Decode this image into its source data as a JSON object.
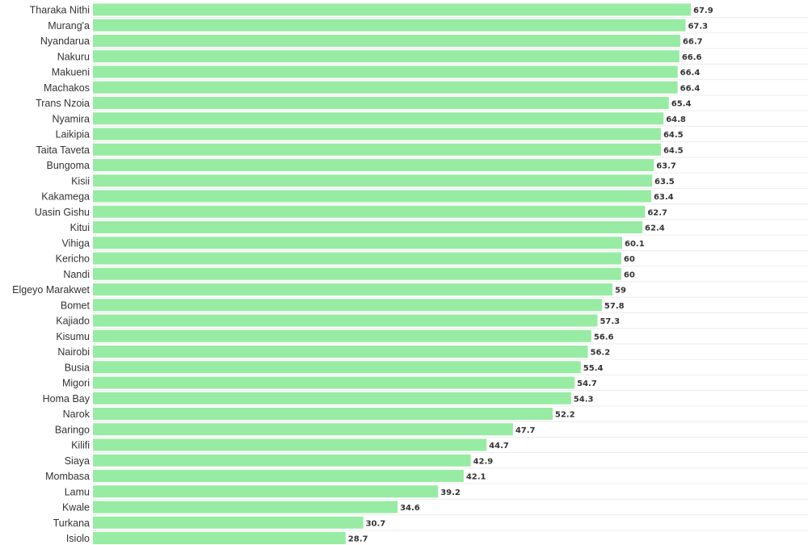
{
  "chart_data": {
    "type": "bar",
    "orientation": "horizontal",
    "categories": [
      "Tharaka Nithi",
      "Murang'a",
      "Nyandarua",
      "Nakuru",
      "Makueni",
      "Machakos",
      "Trans Nzoia",
      "Nyamira",
      "Laikipia",
      "Taita Taveta",
      "Bungoma",
      "Kisii",
      "Kakamega",
      "Uasin Gishu",
      "Kitui",
      "Vihiga",
      "Kericho",
      "Nandi",
      "Elgeyo Marakwet",
      "Bomet",
      "Kajiado",
      "Kisumu",
      "Nairobi",
      "Busia",
      "Migori",
      "Homa Bay",
      "Narok",
      "Baringo",
      "Kilifi",
      "Siaya",
      "Mombasa",
      "Lamu",
      "Kwale",
      "Turkana",
      "Isiolo"
    ],
    "values": [
      67.9,
      67.3,
      66.7,
      66.6,
      66.4,
      66.4,
      65.4,
      64.8,
      64.5,
      64.5,
      63.7,
      63.5,
      63.4,
      62.7,
      62.4,
      60.1,
      60,
      60,
      59,
      57.8,
      57.3,
      56.6,
      56.2,
      55.4,
      54.7,
      54.3,
      52.2,
      47.7,
      44.7,
      42.9,
      42.1,
      39.2,
      34.6,
      30.7,
      28.7
    ],
    "value_labels": [
      "67.9",
      "67.3",
      "66.7",
      "66.6",
      "66.4",
      "66.4",
      "65.4",
      "64.8",
      "64.5",
      "64.5",
      "63.7",
      "63.5",
      "63.4",
      "62.7",
      "62.4",
      "60.1",
      "60",
      "60",
      "59",
      "57.8",
      "57.3",
      "56.6",
      "56.2",
      "55.4",
      "54.7",
      "54.3",
      "52.2",
      "47.7",
      "44.7",
      "42.9",
      "42.1",
      "39.2",
      "34.6",
      "30.7",
      "28.7"
    ],
    "title": "",
    "xlabel": "",
    "ylabel": "",
    "xlim": [
      0,
      68
    ],
    "grid": true,
    "legend": "none",
    "bar_color": "#98eba3",
    "label_color": "#333333",
    "grid_color": "#ececec"
  }
}
